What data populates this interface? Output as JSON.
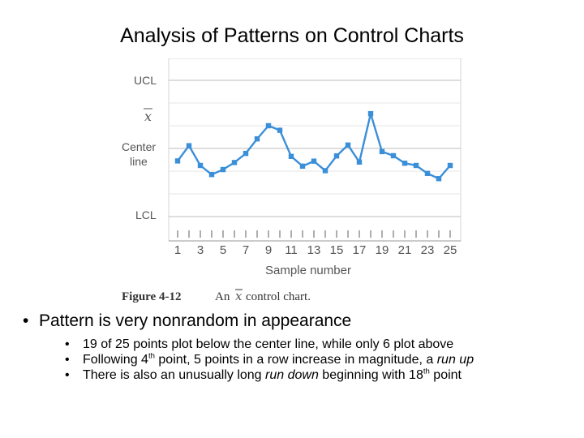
{
  "title": "Analysis of Patterns on Control Charts",
  "chart_data": {
    "type": "line",
    "series_color": "#3b8fd9",
    "line_labels": {
      "ucl": "UCL",
      "xbar": "x",
      "center_line_1": "Center",
      "center_line_2": "line",
      "lcl": "LCL"
    },
    "x": [
      1,
      2,
      3,
      4,
      5,
      6,
      7,
      8,
      9,
      10,
      11,
      12,
      13,
      14,
      15,
      16,
      17,
      18,
      19,
      20,
      21,
      22,
      23,
      24,
      25
    ],
    "y": [
      -0.55,
      0.12,
      -0.75,
      -1.15,
      -0.93,
      -0.62,
      -0.22,
      0.42,
      1.0,
      0.8,
      -0.35,
      -0.78,
      -0.56,
      -0.98,
      -0.33,
      0.15,
      -0.6,
      1.53,
      -0.14,
      -0.32,
      -0.65,
      -0.75,
      -1.1,
      -1.33,
      -0.75
    ],
    "y_reference": {
      "ucl": 3,
      "center": 0,
      "lcl": -3
    },
    "xticklabels": [
      "1",
      "3",
      "5",
      "7",
      "9",
      "11",
      "13",
      "15",
      "17",
      "19",
      "21",
      "23",
      "25"
    ],
    "xlabel": "Sample number",
    "caption_label": "Figure 4-12",
    "caption_text": "An",
    "caption_symbol": "x",
    "caption_rest": "control chart."
  },
  "bullets": {
    "main": "Pattern is very nonrandom in appearance",
    "sub1": "19 of 25 points plot below the center line, while only 6 plot above",
    "sub2_a": "Following 4",
    "sub2_sup": "th",
    "sub2_b": " point, 5 points in a row increase in magnitude, a ",
    "sub2_em": "run up",
    "sub3_a": "There is also an unusually long ",
    "sub3_em": "run down",
    "sub3_b": " beginning with 18",
    "sub3_sup": "th",
    "sub3_c": " point"
  }
}
